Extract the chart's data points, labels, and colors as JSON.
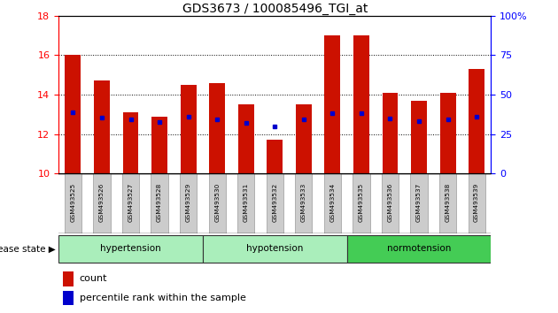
{
  "title": "GDS3673 / 100085496_TGI_at",
  "samples": [
    "GSM493525",
    "GSM493526",
    "GSM493527",
    "GSM493528",
    "GSM493529",
    "GSM493530",
    "GSM493531",
    "GSM493532",
    "GSM493533",
    "GSM493534",
    "GSM493535",
    "GSM493536",
    "GSM493537",
    "GSM493538",
    "GSM493539"
  ],
  "bar_values": [
    16.0,
    14.7,
    13.1,
    12.9,
    14.5,
    14.6,
    13.5,
    11.7,
    13.5,
    17.0,
    17.0,
    14.1,
    13.7,
    14.1,
    15.3
  ],
  "percentile_values": [
    13.1,
    12.85,
    12.75,
    12.6,
    12.9,
    12.75,
    12.55,
    12.4,
    12.75,
    13.05,
    13.05,
    12.8,
    12.65,
    12.75,
    12.9
  ],
  "bar_color": "#cc1100",
  "percentile_color": "#0000cc",
  "ymin": 10,
  "ymax": 18,
  "yticks": [
    10,
    12,
    14,
    16,
    18
  ],
  "right_ytick_labels": [
    "0",
    "25",
    "50",
    "75",
    "100%"
  ],
  "tick_bg_color": "#cccccc",
  "legend_count": "count",
  "legend_pct": "percentile rank within the sample",
  "bar_width": 0.55,
  "group_info": [
    {
      "label": "hypertension",
      "start": 0,
      "end": 4,
      "color": "#aaeebb"
    },
    {
      "label": "hypotension",
      "start": 5,
      "end": 9,
      "color": "#aaeebb"
    },
    {
      "label": "normotension",
      "start": 10,
      "end": 14,
      "color": "#44cc55"
    }
  ]
}
